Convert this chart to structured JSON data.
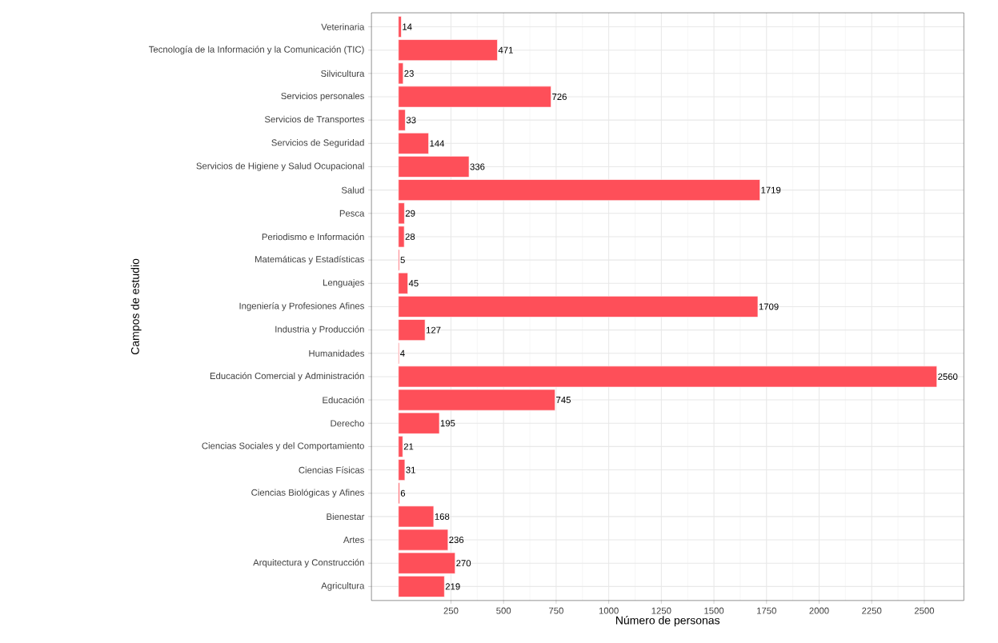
{
  "chart_data": {
    "type": "bar",
    "orientation": "horizontal",
    "xlabel": "Número de personas",
    "ylabel": "Campos de estudio",
    "categories": [
      "Veterinaria",
      "Tecnología de la Información y la Comunicación (TIC)",
      "Silvicultura",
      "Servicios personales",
      "Servicios de Transportes",
      "Servicios de Seguridad",
      "Servicios de Higiene y Salud Ocupacional",
      "Salud",
      "Pesca",
      "Periodismo e Información",
      "Matemáticas y Estadísticas",
      "Lenguajes",
      "Ingeniería y Profesiones Afines",
      "Industria y Producción",
      "Humanidades",
      "Educación Comercial y Administración",
      "Educación",
      "Derecho",
      "Ciencias Sociales y del Comportamiento",
      "Ciencias Físicas",
      "Ciencias Biológicas y Afines",
      "Bienestar",
      "Artes",
      "Arquitectura y Construcción",
      "Agricultura"
    ],
    "values": [
      14,
      471,
      23,
      726,
      33,
      144,
      336,
      1719,
      29,
      28,
      5,
      45,
      1709,
      127,
      4,
      2560,
      745,
      195,
      21,
      31,
      6,
      168,
      236,
      270,
      219
    ],
    "color": "#fe4f59",
    "xlim": [
      -128,
      2688
    ],
    "xticks": [
      250,
      500,
      750,
      1000,
      1250,
      1500,
      1750,
      2000,
      2250,
      2500
    ],
    "grid": true,
    "data_labels": true
  }
}
